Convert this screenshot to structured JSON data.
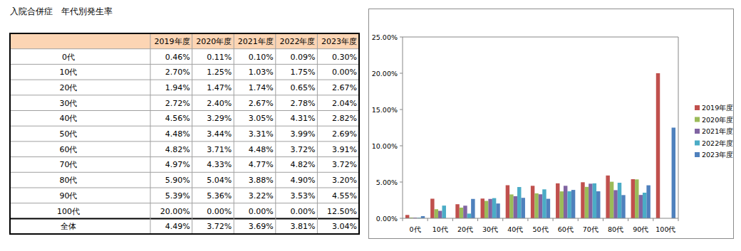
{
  "title": "入院合併症　年代別発生率",
  "table": {
    "columns": [
      "2019年度",
      "2020年度",
      "2021年度",
      "2022年度",
      "2023年度"
    ],
    "rows": [
      {
        "label": "0代",
        "cells": [
          "0.46%",
          "0.11%",
          "0.10%",
          "0.09%",
          "0.30%"
        ]
      },
      {
        "label": "10代",
        "cells": [
          "2.70%",
          "1.25%",
          "1.03%",
          "1.75%",
          "0.00%"
        ]
      },
      {
        "label": "20代",
        "cells": [
          "1.94%",
          "1.47%",
          "1.74%",
          "0.65%",
          "2.67%"
        ]
      },
      {
        "label": "30代",
        "cells": [
          "2.72%",
          "2.40%",
          "2.67%",
          "2.78%",
          "2.04%"
        ]
      },
      {
        "label": "40代",
        "cells": [
          "4.56%",
          "3.29%",
          "3.05%",
          "4.31%",
          "2.82%"
        ]
      },
      {
        "label": "50代",
        "cells": [
          "4.48%",
          "3.44%",
          "3.31%",
          "3.99%",
          "2.69%"
        ]
      },
      {
        "label": "60代",
        "cells": [
          "4.82%",
          "3.71%",
          "4.48%",
          "3.72%",
          "3.91%"
        ]
      },
      {
        "label": "70代",
        "cells": [
          "4.97%",
          "4.33%",
          "4.77%",
          "4.82%",
          "3.72%"
        ]
      },
      {
        "label": "80代",
        "cells": [
          "5.90%",
          "5.04%",
          "3.88%",
          "4.90%",
          "3.20%"
        ]
      },
      {
        "label": "90代",
        "cells": [
          "5.39%",
          "5.36%",
          "3.22%",
          "3.53%",
          "4.55%"
        ]
      },
      {
        "label": "100代",
        "cells": [
          "20.00%",
          "0.00%",
          "0.00%",
          "0.00%",
          "12.50%"
        ]
      },
      {
        "label": "全体",
        "cells": [
          "4.49%",
          "3.72%",
          "3.69%",
          "3.81%",
          "3.04%"
        ]
      }
    ]
  },
  "chart_data": {
    "type": "bar",
    "categories": [
      "0代",
      "10代",
      "20代",
      "30代",
      "40代",
      "50代",
      "60代",
      "70代",
      "80代",
      "90代",
      "100代"
    ],
    "series": [
      {
        "name": "2019年度",
        "color": "#c0504d",
        "values": [
          0.46,
          2.7,
          1.94,
          2.72,
          4.56,
          4.48,
          4.82,
          4.97,
          5.9,
          5.39,
          20.0
        ]
      },
      {
        "name": "2020年度",
        "color": "#9bbb59",
        "values": [
          0.11,
          1.25,
          1.47,
          2.4,
          3.29,
          3.44,
          3.71,
          4.33,
          5.04,
          5.36,
          0.0
        ]
      },
      {
        "name": "2021年度",
        "color": "#8064a2",
        "values": [
          0.1,
          1.03,
          1.74,
          2.67,
          3.05,
          3.31,
          4.48,
          4.77,
          3.88,
          3.22,
          0.0
        ]
      },
      {
        "name": "2022年度",
        "color": "#4bacc6",
        "values": [
          0.09,
          1.75,
          0.65,
          2.78,
          4.31,
          3.99,
          3.72,
          4.82,
          4.9,
          3.53,
          0.0
        ]
      },
      {
        "name": "2023年度",
        "color": "#4f81bd",
        "values": [
          0.3,
          0.0,
          2.67,
          2.04,
          2.82,
          2.69,
          3.91,
          3.72,
          3.2,
          4.55,
          12.5
        ]
      }
    ],
    "ylim": [
      0,
      25
    ],
    "yticks": [
      {
        "value": 0,
        "label": "0.00%"
      },
      {
        "value": 5,
        "label": "5.00%"
      },
      {
        "value": 10,
        "label": "10.00%"
      },
      {
        "value": 15,
        "label": "15.00%"
      },
      {
        "value": 20,
        "label": "20.00%"
      },
      {
        "value": 25,
        "label": "25.00%"
      }
    ],
    "grid": false,
    "legend": "right"
  }
}
